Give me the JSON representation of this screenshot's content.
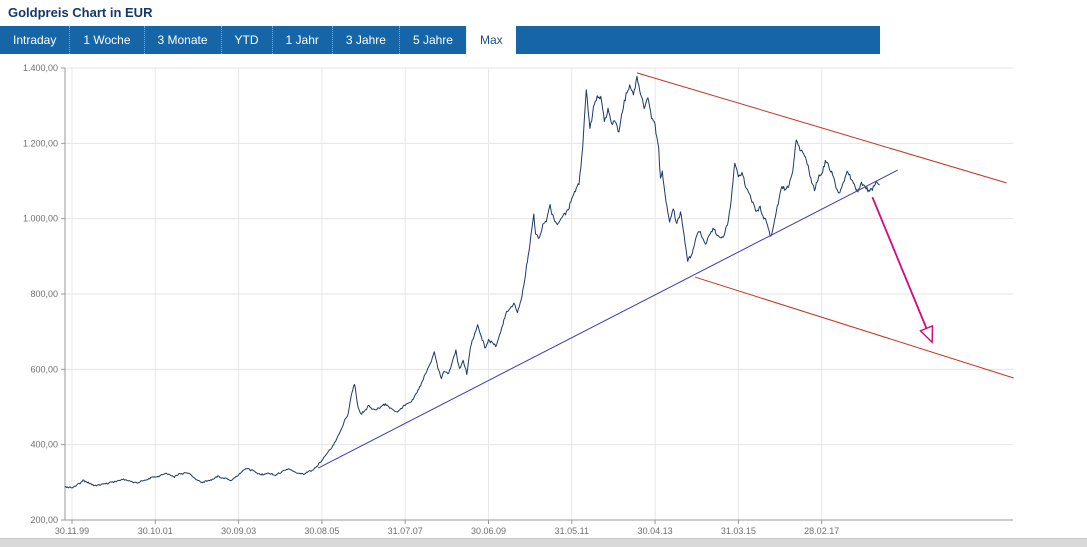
{
  "header": {
    "title": "Goldpreis Chart in EUR"
  },
  "tabs": {
    "items": [
      {
        "label": "Intraday",
        "active": false
      },
      {
        "label": "1 Woche",
        "active": false
      },
      {
        "label": "3 Monate",
        "active": false
      },
      {
        "label": "YTD",
        "active": false
      },
      {
        "label": "1 Jahr",
        "active": false
      },
      {
        "label": "3 Jahre",
        "active": false
      },
      {
        "label": "5 Jahre",
        "active": false
      },
      {
        "label": "Max",
        "active": true
      }
    ]
  },
  "chart_data": {
    "type": "line",
    "title": "Goldpreis Chart in EUR",
    "currency": "EUR",
    "ylim": [
      200,
      1400
    ],
    "y_ticks": [
      200,
      400,
      600,
      800,
      1000,
      1200,
      1400
    ],
    "y_tick_labels": [
      "200,00",
      "400,00",
      "600,00",
      "800,00",
      "1.000,00",
      "1.200,00",
      "1.400,00"
    ],
    "x_tick_labels": [
      "30.11.99",
      "30.10.01",
      "30.09.03",
      "30.08.05",
      "31.07.07",
      "30.06.09",
      "31.05.11",
      "30.04.13",
      "31.03.15",
      "28.02.17"
    ],
    "x_tick_interval_months": 23,
    "grid": true,
    "legend": "none",
    "series": [
      {
        "name": "Goldpreis EUR",
        "color": "#1b3a6b",
        "anchors": [
          [
            -2,
            288
          ],
          [
            0,
            285
          ],
          [
            3,
            302
          ],
          [
            6,
            291
          ],
          [
            10,
            296
          ],
          [
            14,
            306
          ],
          [
            18,
            299
          ],
          [
            22,
            311
          ],
          [
            26,
            321
          ],
          [
            28,
            309
          ],
          [
            32,
            326
          ],
          [
            36,
            304
          ],
          [
            40,
            318
          ],
          [
            44,
            307
          ],
          [
            48,
            331
          ],
          [
            52,
            323
          ],
          [
            56,
            317
          ],
          [
            60,
            333
          ],
          [
            64,
            324
          ],
          [
            66,
            336
          ],
          [
            68,
            352
          ],
          [
            70,
            372
          ],
          [
            72,
            398
          ],
          [
            74,
            432
          ],
          [
            76,
            472
          ],
          [
            77,
            522
          ],
          [
            78,
            558
          ],
          [
            79,
            498
          ],
          [
            80,
            478
          ],
          [
            82,
            502
          ],
          [
            84,
            492
          ],
          [
            86,
            506
          ],
          [
            88,
            499
          ],
          [
            90,
            486
          ],
          [
            92,
            496
          ],
          [
            94,
            512
          ],
          [
            96,
            552
          ],
          [
            98,
            592
          ],
          [
            100,
            641
          ],
          [
            101,
            601
          ],
          [
            102,
            574
          ],
          [
            103,
            591
          ],
          [
            104,
            586
          ],
          [
            105,
            612
          ],
          [
            106,
            641
          ],
          [
            107,
            592
          ],
          [
            108,
            616
          ],
          [
            109,
            581
          ],
          [
            110,
            652
          ],
          [
            111,
            682
          ],
          [
            112,
            716
          ],
          [
            113,
            691
          ],
          [
            114,
            666
          ],
          [
            115,
            681
          ],
          [
            116,
            676
          ],
          [
            117,
            666
          ],
          [
            118,
            691
          ],
          [
            119,
            721
          ],
          [
            120,
            756
          ],
          [
            121,
            766
          ],
          [
            122,
            781
          ],
          [
            123,
            761
          ],
          [
            124,
            791
          ],
          [
            125,
            841
          ],
          [
            126,
            901
          ],
          [
            127,
            971
          ],
          [
            127.5,
            1004
          ],
          [
            128,
            951
          ],
          [
            129,
            936
          ],
          [
            130,
            976
          ],
          [
            131,
            996
          ],
          [
            132,
            1031
          ],
          [
            133,
            1001
          ],
          [
            134,
            986
          ],
          [
            135,
            1001
          ],
          [
            136,
            1011
          ],
          [
            137,
            1031
          ],
          [
            138,
            1051
          ],
          [
            139,
            1071
          ],
          [
            140,
            1091
          ],
          [
            141,
            1181
          ],
          [
            142,
            1341
          ],
          [
            142.5,
            1281
          ],
          [
            143,
            1231
          ],
          [
            144,
            1291
          ],
          [
            145,
            1311
          ],
          [
            146,
            1321
          ],
          [
            147,
            1261
          ],
          [
            148,
            1291
          ],
          [
            149,
            1241
          ],
          [
            150,
            1256
          ],
          [
            151,
            1231
          ],
          [
            152,
            1291
          ],
          [
            153,
            1331
          ],
          [
            154,
            1351
          ],
          [
            155,
            1331
          ],
          [
            156,
            1376
          ],
          [
            157,
            1341
          ],
          [
            158,
            1301
          ],
          [
            159,
            1331
          ],
          [
            160,
            1271
          ],
          [
            161,
            1251
          ],
          [
            162,
            1181
          ],
          [
            162.5,
            1101
          ],
          [
            163,
            1121
          ],
          [
            164,
            1041
          ],
          [
            165,
            991
          ],
          [
            166,
            1021
          ],
          [
            167,
            981
          ],
          [
            168,
            1011
          ],
          [
            169,
            951
          ],
          [
            170,
            881
          ],
          [
            171,
            901
          ],
          [
            172,
            936
          ],
          [
            173,
            956
          ],
          [
            174,
            941
          ],
          [
            175,
            926
          ],
          [
            176,
            946
          ],
          [
            177,
            961
          ],
          [
            178,
            951
          ],
          [
            179,
            936
          ],
          [
            180,
            951
          ],
          [
            181,
            981
          ],
          [
            182,
            1051
          ],
          [
            183,
            1141
          ],
          [
            184,
            1106
          ],
          [
            185,
            1121
          ],
          [
            186,
            1086
          ],
          [
            187,
            1061
          ],
          [
            188,
            1036
          ],
          [
            189,
            1011
          ],
          [
            190,
            1021
          ],
          [
            191,
            1001
          ],
          [
            192,
            986
          ],
          [
            193,
            956
          ],
          [
            194,
            1006
          ],
          [
            195,
            1051
          ],
          [
            196,
            1106
          ],
          [
            197,
            1086
          ],
          [
            198,
            1091
          ],
          [
            199,
            1131
          ],
          [
            200,
            1216
          ],
          [
            201,
            1191
          ],
          [
            202,
            1176
          ],
          [
            203,
            1151
          ],
          [
            204,
            1106
          ],
          [
            205,
            1071
          ],
          [
            206,
            1106
          ],
          [
            207,
            1121
          ],
          [
            208,
            1151
          ],
          [
            209,
            1131
          ],
          [
            210,
            1116
          ],
          [
            211,
            1086
          ],
          [
            212,
            1071
          ],
          [
            213,
            1096
          ],
          [
            214,
            1126
          ],
          [
            215,
            1101
          ],
          [
            216,
            1086
          ],
          [
            217,
            1071
          ],
          [
            218,
            1086
          ],
          [
            219,
            1076
          ],
          [
            220,
            1061
          ],
          [
            221,
            1076
          ],
          [
            222,
            1091
          ],
          [
            223,
            1081
          ]
        ]
      }
    ],
    "trendlines": [
      {
        "name": "resistance-upper",
        "color": "#c23421",
        "from": [
          156,
          1387
        ],
        "to": [
          258,
          1095
        ]
      },
      {
        "name": "resistance-lower",
        "color": "#c23421",
        "from": [
          172,
          845
        ],
        "to": [
          260,
          577
        ]
      },
      {
        "name": "support-ascending",
        "color": "#3b3bb2",
        "from": [
          68,
          338
        ],
        "to": [
          228,
          1129
        ]
      }
    ],
    "annotation_arrow": {
      "name": "breakdown-arrow",
      "color": "#d4087e",
      "from": [
        221,
        1057
      ],
      "to": [
        237.5,
        672
      ]
    }
  }
}
